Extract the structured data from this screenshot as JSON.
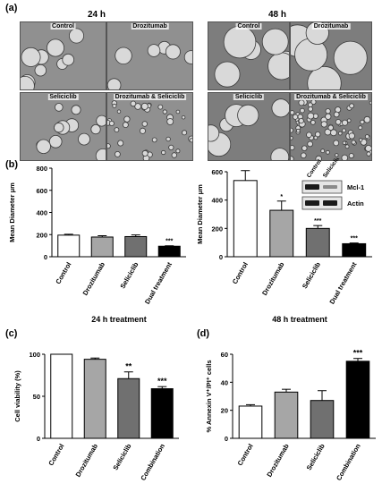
{
  "figure": {
    "panel_a_label": "(a)",
    "panel_b_label": "(b)",
    "panel_c_label": "(c)",
    "panel_d_label": "(d)"
  },
  "micrographs": {
    "time_24": "24 h",
    "time_48": "48 h",
    "images": [
      {
        "label": "Control"
      },
      {
        "label": "Drozitumab"
      },
      {
        "label": "Seliciclib"
      },
      {
        "label": "Drozitumab & Seliciclib"
      },
      {
        "label": "Control"
      },
      {
        "label": "Drozitumab"
      },
      {
        "label": "Seliciclib"
      },
      {
        "label": "Drozitumab & Seliciclib"
      }
    ]
  },
  "western_blot": {
    "lane_labels": [
      "Control",
      "Seliciclib"
    ],
    "band_labels": [
      "Mcl-1",
      "Actin"
    ]
  },
  "chart_data": [
    {
      "id": "b-24h",
      "type": "bar",
      "categories": [
        "Control",
        "Drozitumab",
        "Seliciclib",
        "Dual treatment"
      ],
      "values": [
        195,
        178,
        182,
        95
      ],
      "errors": [
        8,
        12,
        15,
        4
      ],
      "significance": [
        "",
        "",
        "",
        "***"
      ],
      "colors": [
        "#ffffff",
        "#a6a6a6",
        "#707070",
        "#000000"
      ],
      "xlabel": "24 h treatment",
      "ylabel": "Mean Diameter μm",
      "ylim": [
        0,
        800
      ],
      "yticks": [
        0,
        200,
        400,
        600,
        800
      ]
    },
    {
      "id": "b-48h",
      "type": "bar",
      "categories": [
        "Control",
        "Drozitumab",
        "Seliciclib",
        "Dual treatment"
      ],
      "values": [
        538,
        328,
        200,
        92
      ],
      "errors": [
        70,
        65,
        20,
        5
      ],
      "significance": [
        "",
        "*",
        "***",
        "***"
      ],
      "colors": [
        "#ffffff",
        "#a6a6a6",
        "#707070",
        "#000000"
      ],
      "xlabel": "48 h treatment",
      "ylabel": "Mean Diameter μm",
      "ylim": [
        0,
        600
      ],
      "yticks": [
        0,
        200,
        400,
        600
      ]
    },
    {
      "id": "c",
      "type": "bar",
      "categories": [
        "Control",
        "Drozitumab",
        "Seliciclib",
        "Combination"
      ],
      "values": [
        100,
        94,
        71,
        59
      ],
      "errors": [
        0,
        1.5,
        8,
        2.5
      ],
      "significance": [
        "",
        "",
        "**",
        "***"
      ],
      "colors": [
        "#ffffff",
        "#a6a6a6",
        "#707070",
        "#000000"
      ],
      "xlabel": "",
      "ylabel": "Cell viability (%)",
      "ylim": [
        0,
        100
      ],
      "yticks": [
        0,
        50,
        100
      ]
    },
    {
      "id": "d",
      "type": "bar",
      "categories": [
        "Control",
        "Drozitumab",
        "Seliciclib",
        "Combination"
      ],
      "values": [
        23,
        33,
        27,
        55
      ],
      "errors": [
        1,
        2,
        7,
        2
      ],
      "significance": [
        "",
        "",
        "",
        "***"
      ],
      "colors": [
        "#ffffff",
        "#a6a6a6",
        "#707070",
        "#000000"
      ],
      "xlabel": "",
      "ylabel": "% Annexin V⁺/PI⁺ cells",
      "ylim": [
        0,
        60
      ],
      "yticks": [
        0,
        20,
        40,
        60
      ]
    }
  ]
}
